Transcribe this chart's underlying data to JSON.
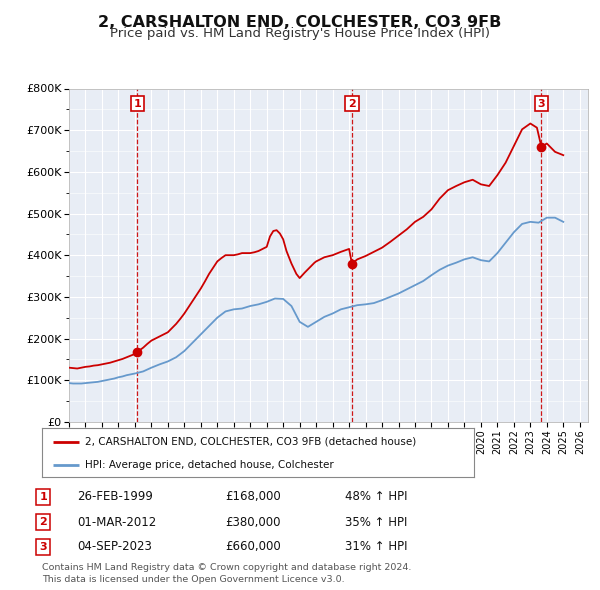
{
  "title": "2, CARSHALTON END, COLCHESTER, CO3 9FB",
  "subtitle": "Price paid vs. HM Land Registry's House Price Index (HPI)",
  "title_fontsize": 11.5,
  "subtitle_fontsize": 9.5,
  "background_color": "#ffffff",
  "plot_bg_color": "#e8edf5",
  "grid_color": "#ffffff",
  "ylim": [
    0,
    800000
  ],
  "xlim_start": 1995.0,
  "xlim_end": 2026.5,
  "yticks": [
    0,
    100000,
    200000,
    300000,
    400000,
    500000,
    600000,
    700000,
    800000
  ],
  "ytick_labels": [
    "£0",
    "£100K",
    "£200K",
    "£300K",
    "£400K",
    "£500K",
    "£600K",
    "£700K",
    "£800K"
  ],
  "xticks": [
    1995,
    1996,
    1997,
    1998,
    1999,
    2000,
    2001,
    2002,
    2003,
    2004,
    2005,
    2006,
    2007,
    2008,
    2009,
    2010,
    2011,
    2012,
    2013,
    2014,
    2015,
    2016,
    2017,
    2018,
    2019,
    2020,
    2021,
    2022,
    2023,
    2024,
    2025,
    2026
  ],
  "red_line_color": "#cc0000",
  "blue_line_color": "#6699cc",
  "sale_marker_color": "#cc0000",
  "annotation_box_color": "#cc0000",
  "vline_color": "#cc0000",
  "sales": [
    {
      "num": 1,
      "date_x": 1999.15,
      "price": 168000,
      "label": "1"
    },
    {
      "num": 2,
      "date_x": 2012.17,
      "price": 380000,
      "label": "2"
    },
    {
      "num": 3,
      "date_x": 2023.67,
      "price": 660000,
      "label": "3"
    }
  ],
  "legend_label_red": "2, CARSHALTON END, COLCHESTER, CO3 9FB (detached house)",
  "legend_label_blue": "HPI: Average price, detached house, Colchester",
  "table_rows": [
    {
      "num": "1",
      "date": "26-FEB-1999",
      "price": "£168,000",
      "pct": "48% ↑ HPI"
    },
    {
      "num": "2",
      "date": "01-MAR-2012",
      "price": "£380,000",
      "pct": "35% ↑ HPI"
    },
    {
      "num": "3",
      "date": "04-SEP-2023",
      "price": "£660,000",
      "pct": "31% ↑ HPI"
    }
  ],
  "footnote1": "Contains HM Land Registry data © Crown copyright and database right 2024.",
  "footnote2": "This data is licensed under the Open Government Licence v3.0.",
  "red_hpi_data": {
    "x": [
      1995.0,
      1995.25,
      1995.5,
      1995.75,
      1996.0,
      1996.25,
      1996.5,
      1996.75,
      1997.0,
      1997.25,
      1997.5,
      1997.75,
      1998.0,
      1998.25,
      1998.5,
      1998.75,
      1999.0,
      1999.15,
      1999.5,
      1999.75,
      2000.0,
      2000.25,
      2000.5,
      2000.75,
      2001.0,
      2001.25,
      2001.5,
      2001.75,
      2002.0,
      2002.25,
      2002.5,
      2002.75,
      2003.0,
      2003.25,
      2003.5,
      2003.75,
      2004.0,
      2004.25,
      2004.5,
      2004.75,
      2005.0,
      2005.25,
      2005.5,
      2005.75,
      2006.0,
      2006.25,
      2006.5,
      2006.75,
      2007.0,
      2007.2,
      2007.4,
      2007.6,
      2007.8,
      2008.0,
      2008.2,
      2008.5,
      2008.8,
      2009.0,
      2009.3,
      2009.6,
      2009.9,
      2010.0,
      2010.5,
      2011.0,
      2011.5,
      2012.0,
      2012.17,
      2012.5,
      2013.0,
      2013.5,
      2014.0,
      2014.5,
      2015.0,
      2015.5,
      2016.0,
      2016.5,
      2017.0,
      2017.5,
      2018.0,
      2018.5,
      2019.0,
      2019.5,
      2020.0,
      2020.5,
      2021.0,
      2021.5,
      2022.0,
      2022.5,
      2023.0,
      2023.4,
      2023.67,
      2024.0,
      2024.5,
      2025.0
    ],
    "y": [
      130000,
      129000,
      128000,
      130000,
      132000,
      133000,
      135000,
      136000,
      138000,
      140000,
      142000,
      145000,
      148000,
      151000,
      155000,
      159000,
      163000,
      168000,
      178000,
      187000,
      195000,
      200000,
      205000,
      210000,
      215000,
      225000,
      235000,
      247000,
      260000,
      275000,
      290000,
      305000,
      320000,
      337000,
      355000,
      370000,
      385000,
      393000,
      400000,
      400000,
      400000,
      402000,
      405000,
      405000,
      405000,
      407000,
      410000,
      415000,
      420000,
      445000,
      458000,
      460000,
      452000,
      438000,
      410000,
      380000,
      355000,
      345000,
      358000,
      370000,
      382000,
      385000,
      395000,
      400000,
      408000,
      415000,
      380000,
      390000,
      398000,
      408000,
      418000,
      432000,
      447000,
      462000,
      480000,
      492000,
      510000,
      536000,
      556000,
      566000,
      575000,
      581000,
      570000,
      566000,
      592000,
      622000,
      662000,
      702000,
      716000,
      706000,
      660000,
      668000,
      648000,
      640000
    ]
  },
  "blue_hpi_data": {
    "x": [
      1995.0,
      1995.25,
      1995.5,
      1995.75,
      1996.0,
      1996.25,
      1996.5,
      1996.75,
      1997.0,
      1997.25,
      1997.5,
      1997.75,
      1998.0,
      1998.25,
      1998.5,
      1998.75,
      1999.0,
      1999.5,
      2000.0,
      2000.5,
      2001.0,
      2001.5,
      2002.0,
      2002.5,
      2003.0,
      2003.5,
      2004.0,
      2004.5,
      2005.0,
      2005.5,
      2006.0,
      2006.5,
      2007.0,
      2007.5,
      2008.0,
      2008.5,
      2009.0,
      2009.5,
      2010.0,
      2010.5,
      2011.0,
      2011.5,
      2012.0,
      2012.5,
      2013.0,
      2013.5,
      2014.0,
      2014.5,
      2015.0,
      2015.5,
      2016.0,
      2016.5,
      2017.0,
      2017.5,
      2018.0,
      2018.5,
      2019.0,
      2019.5,
      2020.0,
      2020.5,
      2021.0,
      2021.5,
      2022.0,
      2022.5,
      2023.0,
      2023.5,
      2024.0,
      2024.5,
      2025.0
    ],
    "y": [
      93000,
      92000,
      92000,
      92000,
      93000,
      94000,
      95000,
      96000,
      98000,
      100000,
      102000,
      104000,
      107000,
      109000,
      112000,
      114000,
      116000,
      121000,
      130000,
      138000,
      145000,
      155000,
      170000,
      190000,
      210000,
      230000,
      250000,
      265000,
      270000,
      272000,
      278000,
      282000,
      288000,
      296000,
      295000,
      278000,
      240000,
      228000,
      240000,
      252000,
      260000,
      270000,
      275000,
      280000,
      282000,
      285000,
      292000,
      300000,
      308000,
      318000,
      328000,
      338000,
      352000,
      365000,
      375000,
      382000,
      390000,
      395000,
      388000,
      385000,
      405000,
      430000,
      455000,
      475000,
      480000,
      478000,
      490000,
      490000,
      480000
    ]
  }
}
